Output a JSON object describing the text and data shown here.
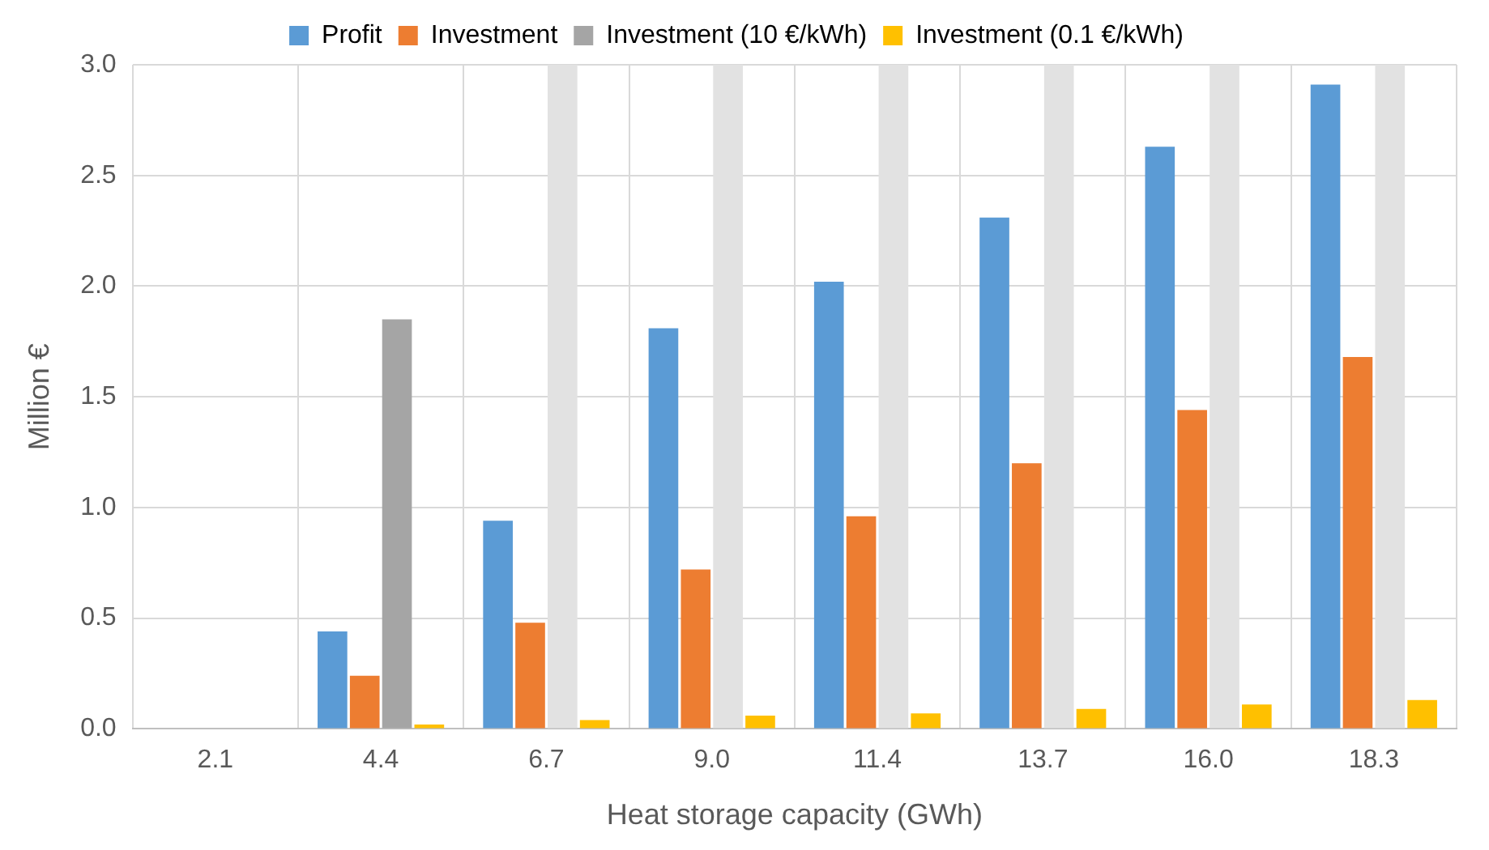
{
  "chart_data": {
    "type": "bar",
    "xlabel": "Heat storage capacity (GWh)",
    "ylabel": "Million €",
    "categories": [
      "2.1",
      "4.4",
      "6.7",
      "9.0",
      "11.4",
      "13.7",
      "16.0",
      "18.3"
    ],
    "series": [
      {
        "name": "Profit",
        "color": "#5b9bd5",
        "values": [
          0,
          0.44,
          0.94,
          1.81,
          2.02,
          2.31,
          2.63,
          2.91
        ]
      },
      {
        "name": "Investment",
        "color": "#ed7d31",
        "values": [
          0,
          0.24,
          0.48,
          0.72,
          0.96,
          1.2,
          1.44,
          1.68
        ]
      },
      {
        "name": "Investment (10 €/kWh)",
        "color": "#a5a5a5",
        "colors": [
          "#a5a5a5",
          "#a5a5a5",
          "#e2e2e2",
          "#e2e2e2",
          "#e2e2e2",
          "#e2e2e2",
          "#e2e2e2",
          "#e2e2e2"
        ],
        "values": [
          0,
          1.85,
          3.0,
          3.0,
          3.0,
          3.0,
          3.0,
          3.0
        ]
      },
      {
        "name": "Investment (0.1 €/kWh)",
        "color": "#ffc000",
        "values": [
          0,
          0.02,
          0.04,
          0.06,
          0.07,
          0.09,
          0.11,
          0.13
        ]
      }
    ],
    "ylim": [
      0,
      3
    ],
    "yticks": [
      {
        "value": 0,
        "label": "0.0"
      },
      {
        "value": 0.5,
        "label": "0.5"
      },
      {
        "value": 1,
        "label": "1.0"
      },
      {
        "value": 1.5,
        "label": "1.5"
      },
      {
        "value": 2,
        "label": "2.0"
      },
      {
        "value": 2.5,
        "label": "2.5"
      },
      {
        "value": 3,
        "label": "3.0"
      }
    ],
    "grid": true,
    "legend": "top"
  }
}
